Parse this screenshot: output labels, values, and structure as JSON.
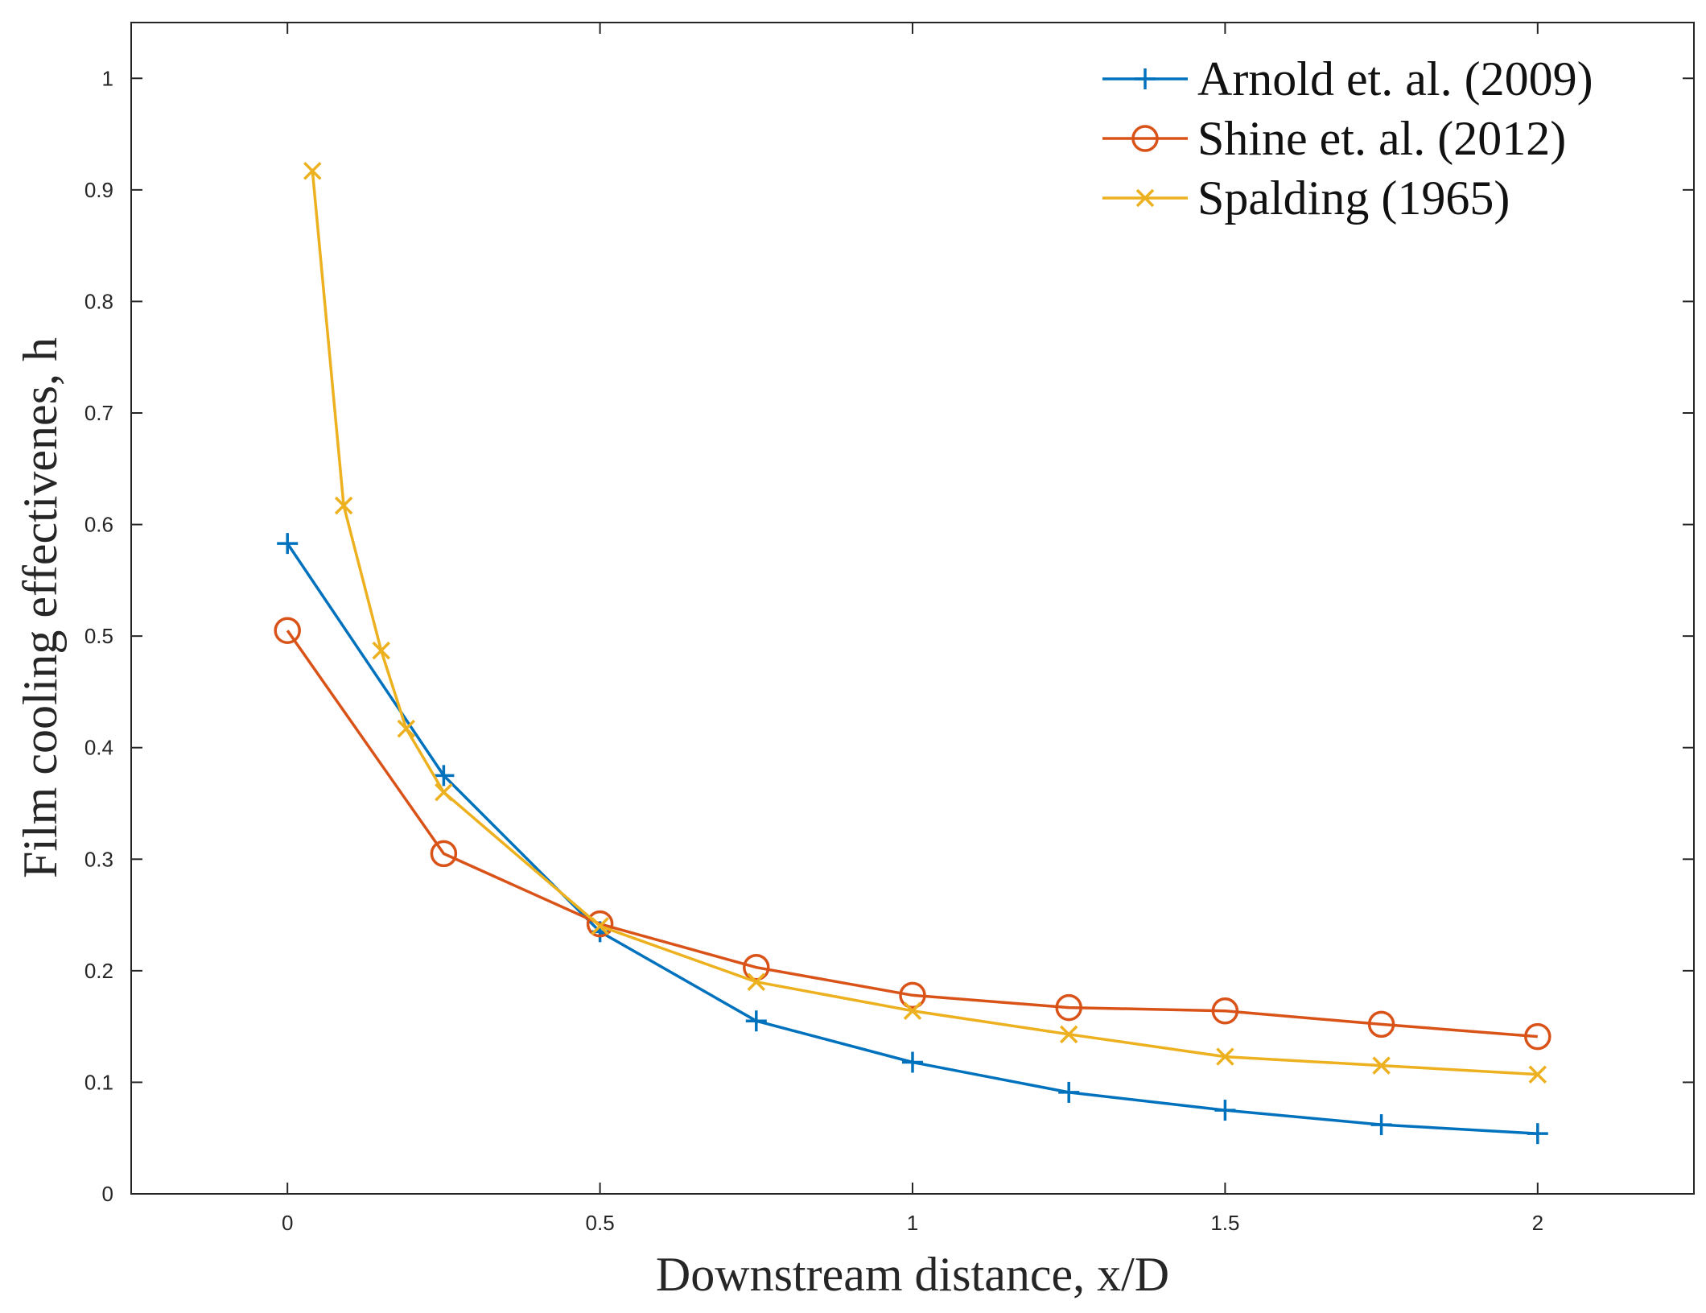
{
  "chart_data": {
    "type": "line",
    "title": "",
    "xlabel": "Downstream distance, x/D",
    "ylabel": "Film cooling effectivenes, h",
    "xlim": [
      -0.25,
      2.25
    ],
    "ylim": [
      0,
      1.05
    ],
    "xticks": [
      0,
      0.5,
      1,
      1.5,
      2
    ],
    "xtick_labels": [
      "0",
      "0.5",
      "1",
      "1.5",
      "2"
    ],
    "yticks": [
      0,
      0.1,
      0.2,
      0.3,
      0.4,
      0.5,
      0.6,
      0.7,
      0.8,
      0.9,
      1
    ],
    "ytick_labels": [
      "0",
      "0.1",
      "0.2",
      "0.3",
      "0.4",
      "0.5",
      "0.6",
      "0.7",
      "0.8",
      "0.9",
      "1"
    ],
    "grid": false,
    "legend_position": "top-right",
    "series": [
      {
        "name": "Arnold et. al. (2009)",
        "color": "#0072BD",
        "marker": "plus",
        "x": [
          0,
          0.25,
          0.5,
          0.75,
          1.0,
          1.25,
          1.5,
          1.75,
          2.0
        ],
        "y": [
          0.583,
          0.375,
          0.235,
          0.155,
          0.118,
          0.091,
          0.075,
          0.062,
          0.054
        ]
      },
      {
        "name": "Shine et. al. (2012)",
        "color": "#D95319",
        "marker": "circle",
        "x": [
          0,
          0.25,
          0.5,
          0.75,
          1.0,
          1.25,
          1.5,
          1.75,
          2.0
        ],
        "y": [
          0.505,
          0.305,
          0.242,
          0.203,
          0.178,
          0.167,
          0.164,
          0.152,
          0.141
        ]
      },
      {
        "name": "Spalding (1965)",
        "color": "#EDB120",
        "marker": "x",
        "x": [
          0.04,
          0.09,
          0.15,
          0.19,
          0.25,
          0.5,
          0.75,
          1.0,
          1.25,
          1.5,
          1.75,
          2.0
        ],
        "y": [
          0.917,
          0.617,
          0.487,
          0.417,
          0.36,
          0.24,
          0.19,
          0.164,
          0.143,
          0.123,
          0.115,
          0.107
        ]
      }
    ]
  }
}
